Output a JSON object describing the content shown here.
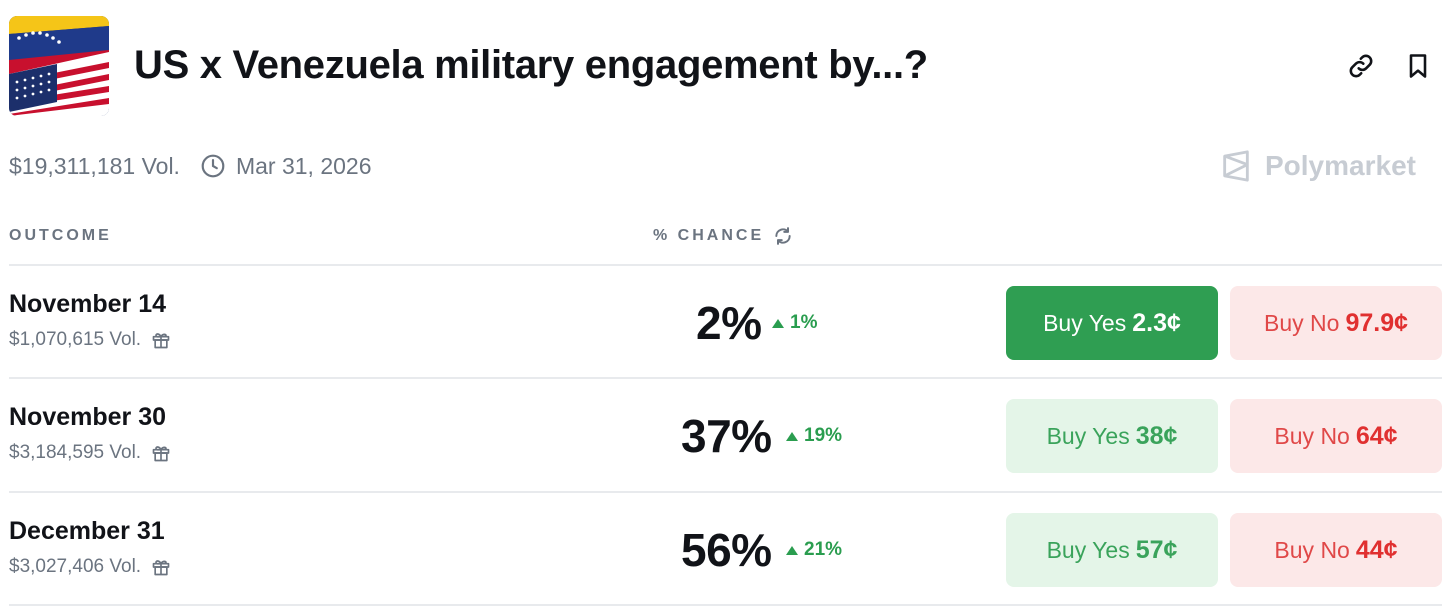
{
  "market": {
    "title": "US x Venezuela military engagement by...?",
    "volume": "$19,311,181 Vol.",
    "end_date": "Mar 31, 2026",
    "brand": "Polymarket",
    "icons": {
      "thumbnail": "us-venezuela-flag-image",
      "link": "link-icon",
      "bookmark": "bookmark-icon",
      "clock": "clock-icon",
      "brand_logo": "polymarket-logo"
    }
  },
  "table": {
    "col_outcome": "OUTCOME",
    "col_chance": "% CHANCE",
    "refresh_icon": "refresh-icon",
    "rows": [
      {
        "date": "November 14",
        "volume": "$1,070,615 Vol.",
        "chance": "2%",
        "delta": "1%",
        "yes_label": "Buy Yes",
        "yes_price": "2.3¢",
        "no_label": "Buy No",
        "no_price": "97.9¢"
      },
      {
        "date": "November 30",
        "volume": "$3,184,595 Vol.",
        "chance": "37%",
        "delta": "19%",
        "yes_label": "Buy Yes",
        "yes_price": "38¢",
        "no_label": "Buy No",
        "no_price": "64¢"
      },
      {
        "date": "December 31",
        "volume": "$3,027,406 Vol.",
        "chance": "56%",
        "delta": "21%",
        "yes_label": "Buy Yes",
        "yes_price": "57¢",
        "no_label": "Buy No",
        "no_price": "44¢"
      }
    ]
  },
  "colors": {
    "up_green": "#2a9d4f",
    "yes_active_bg": "#2f9e52",
    "yes_bg": "#e4f5e8",
    "no_bg": "#fce8e8",
    "no_text": "#e03030",
    "muted_text": "#6b7480"
  }
}
